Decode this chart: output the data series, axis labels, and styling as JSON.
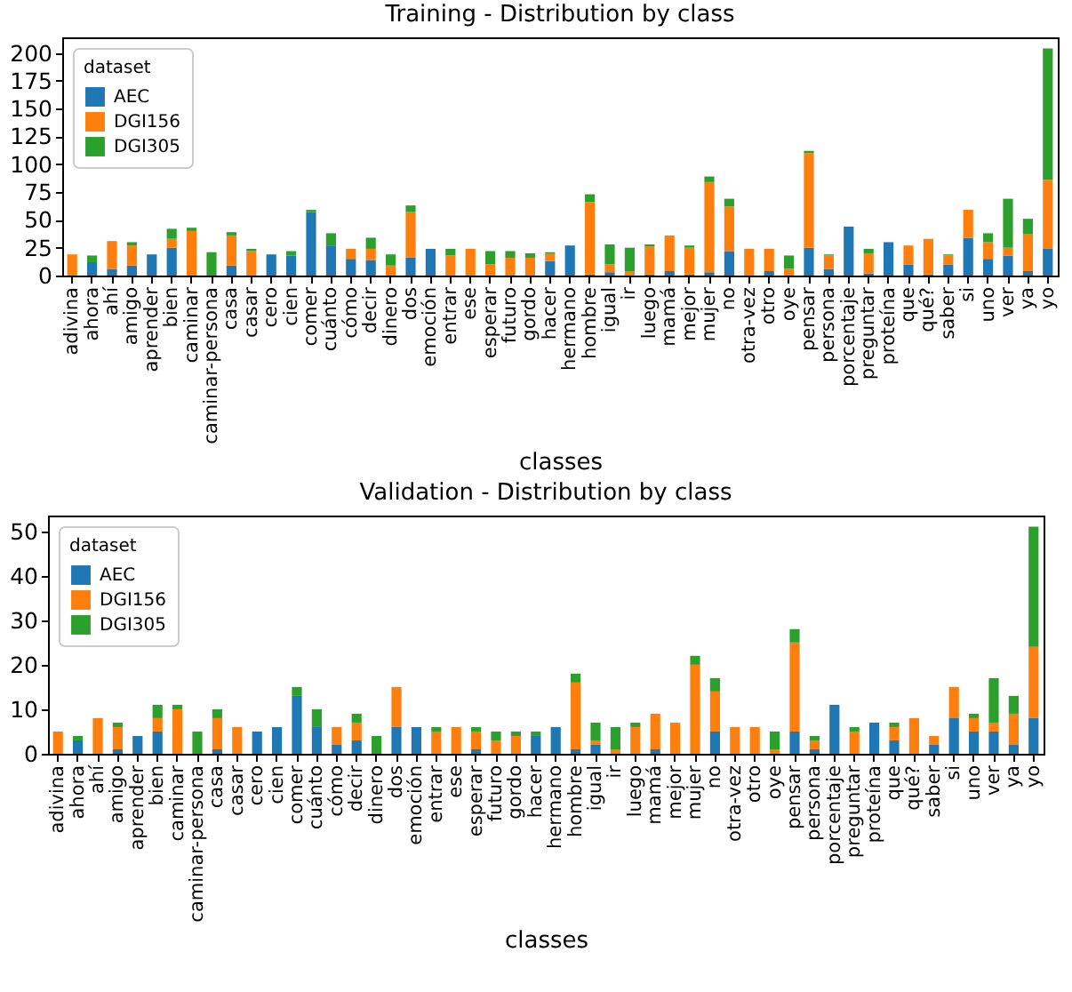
{
  "chart_data": [
    {
      "type": "bar",
      "title": "Training - Distribution by class",
      "xlabel": "classes",
      "legend_title": "dataset",
      "legend": "top left",
      "stacked": true,
      "grid": false,
      "categories": [
        "adivina",
        "ahora",
        "ahí",
        "amigo",
        "aprender",
        "bien",
        "caminar",
        "caminar-persona",
        "casa",
        "casar",
        "cero",
        "cien",
        "comer",
        "cuánto",
        "cómo",
        "decir",
        "dinero",
        "dos",
        "emoción",
        "entrar",
        "ese",
        "esperar",
        "futuro",
        "gordo",
        "hacer",
        "hermano",
        "hombre",
        "igual",
        "ir",
        "luego",
        "mamá",
        "mejor",
        "mujer",
        "no",
        "otra-vez",
        "otro",
        "oye",
        "pensar",
        "persona",
        "porcentaje",
        "preguntar",
        "proteína",
        "que",
        "qué?",
        "saber",
        "si",
        "uno",
        "ver",
        "ya",
        "yo"
      ],
      "ylim": [
        0,
        214
      ],
      "yticks": [
        0,
        25,
        50,
        75,
        100,
        125,
        150,
        175,
        200
      ],
      "series": [
        {
          "name": "AEC",
          "color": "#1f77b4",
          "values": [
            0,
            12,
            6,
            9,
            19,
            25,
            0,
            0,
            9,
            0,
            19,
            18,
            57,
            27,
            15,
            14,
            0,
            16,
            24,
            0,
            0,
            0,
            0,
            0,
            13,
            27,
            1,
            3,
            0,
            1,
            4,
            1,
            3,
            22,
            0,
            4,
            0,
            25,
            6,
            44,
            2,
            30,
            10,
            1,
            10,
            34,
            15,
            18,
            4,
            24
          ]
        },
        {
          "name": "DGI156",
          "color": "#ff7f0e",
          "values": [
            19,
            0,
            25,
            18,
            0,
            8,
            40,
            0,
            27,
            22,
            0,
            0,
            0,
            0,
            9,
            10,
            9,
            41,
            0,
            18,
            24,
            10,
            16,
            16,
            7,
            0,
            65,
            7,
            4,
            25,
            32,
            24,
            81,
            40,
            24,
            20,
            6,
            85,
            12,
            0,
            18,
            0,
            17,
            32,
            8,
            25,
            15,
            7,
            33,
            62
          ]
        },
        {
          "name": "DGI305",
          "color": "#2ca02c",
          "values": [
            0,
            6,
            0,
            3,
            0,
            9,
            3,
            21,
            3,
            2,
            0,
            4,
            2,
            11,
            0,
            10,
            10,
            6,
            0,
            6,
            0,
            12,
            6,
            4,
            1,
            0,
            7,
            18,
            21,
            2,
            0,
            2,
            5,
            7,
            0,
            0,
            12,
            2,
            1,
            0,
            4,
            0,
            0,
            0,
            1,
            0,
            8,
            44,
            14,
            118
          ]
        }
      ]
    },
    {
      "type": "bar",
      "title": "Validation - Distribution by class",
      "xlabel": "classes",
      "legend_title": "dataset",
      "legend": "top left",
      "stacked": true,
      "grid": false,
      "categories": [
        "adivina",
        "ahora",
        "ahí",
        "amigo",
        "aprender",
        "bien",
        "caminar",
        "caminar-persona",
        "casa",
        "casar",
        "cero",
        "cien",
        "comer",
        "cuánto",
        "cómo",
        "decir",
        "dinero",
        "dos",
        "emoción",
        "entrar",
        "ese",
        "esperar",
        "futuro",
        "gordo",
        "hacer",
        "hermano",
        "hombre",
        "igual",
        "ir",
        "luego",
        "mamá",
        "mejor",
        "mujer",
        "no",
        "otra-vez",
        "otro",
        "oye",
        "pensar",
        "persona",
        "porcentaje",
        "preguntar",
        "proteína",
        "que",
        "qué?",
        "saber",
        "si",
        "uno",
        "ver",
        "ya",
        "yo"
      ],
      "ylim": [
        0,
        53.5
      ],
      "yticks": [
        0,
        10,
        20,
        30,
        40,
        50
      ],
      "series": [
        {
          "name": "AEC",
          "color": "#1f77b4",
          "values": [
            0,
            3,
            0,
            1,
            4,
            5,
            0,
            0,
            1,
            0,
            5,
            6,
            13,
            6,
            2,
            3,
            0,
            6,
            6,
            0,
            0,
            1,
            0,
            0,
            4,
            6,
            1,
            2,
            0,
            0,
            1,
            0,
            0,
            5,
            0,
            0,
            0,
            5,
            1,
            11,
            0,
            7,
            3,
            0,
            2,
            8,
            5,
            5,
            2,
            8
          ]
        },
        {
          "name": "DGI156",
          "color": "#ff7f0e",
          "values": [
            5,
            0,
            8,
            5,
            0,
            3,
            10,
            0,
            7,
            6,
            0,
            0,
            0,
            0,
            4,
            4,
            0,
            9,
            0,
            5,
            6,
            4,
            3,
            4,
            0,
            0,
            15,
            1,
            1,
            6,
            8,
            7,
            20,
            9,
            6,
            6,
            1,
            20,
            2,
            0,
            5,
            0,
            3,
            8,
            2,
            7,
            3,
            2,
            7,
            16
          ]
        },
        {
          "name": "DGI305",
          "color": "#2ca02c",
          "values": [
            0,
            1,
            0,
            1,
            0,
            3,
            1,
            5,
            2,
            0,
            0,
            0,
            2,
            4,
            0,
            2,
            4,
            0,
            0,
            1,
            0,
            1,
            2,
            1,
            1,
            0,
            2,
            4,
            5,
            1,
            0,
            0,
            2,
            3,
            0,
            0,
            4,
            3,
            1,
            0,
            1,
            0,
            1,
            0,
            0,
            0,
            1,
            10,
            4,
            27
          ]
        }
      ]
    }
  ]
}
